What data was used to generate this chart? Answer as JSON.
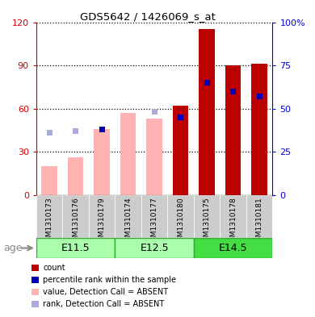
{
  "title": "GDS5642 / 1426069_s_at",
  "samples": [
    "GSM1310173",
    "GSM1310176",
    "GSM1310179",
    "GSM1310174",
    "GSM1310177",
    "GSM1310180",
    "GSM1310175",
    "GSM1310178",
    "GSM1310181"
  ],
  "age_groups": [
    {
      "label": "E11.5",
      "start": 0,
      "end": 3
    },
    {
      "label": "E12.5",
      "start": 3,
      "end": 6
    },
    {
      "label": "E14.5",
      "start": 6,
      "end": 9
    }
  ],
  "value_absent": [
    20,
    26,
    46,
    57,
    53,
    null,
    null,
    null,
    null
  ],
  "rank_absent_pct": [
    36,
    37,
    null,
    null,
    48,
    null,
    null,
    null,
    null
  ],
  "count_red": [
    null,
    null,
    null,
    null,
    null,
    62,
    115,
    90,
    91
  ],
  "rank_blue_pct": [
    null,
    null,
    38,
    null,
    null,
    45,
    65,
    60,
    57
  ],
  "ylim_left": [
    0,
    120
  ],
  "ylim_right": [
    0,
    100
  ],
  "yticks_left": [
    0,
    30,
    60,
    90,
    120
  ],
  "ytick_labels_left": [
    "0",
    "30",
    "60",
    "90",
    "120"
  ],
  "yticks_right_vals": [
    0,
    25,
    50,
    75,
    100
  ],
  "ytick_labels_right": [
    "0",
    "25",
    "50",
    "75",
    "100%"
  ],
  "bar_width": 0.6,
  "color_value_absent": "#FFB3B3",
  "color_rank_absent": "#AAAADD",
  "color_count": "#BB0000",
  "color_rank": "#0000BB",
  "color_age_band_light": "#AAFFAA",
  "color_age_band_dark": "#44DD44",
  "color_age_border": "#33AA33",
  "grid_color": "#000000",
  "bg_color": "#FFFFFF",
  "plot_bg": "#FFFFFF",
  "ylabel_left_color": "#CC0000",
  "ylabel_right_color": "#0000CC",
  "xtick_bg": "#CCCCCC"
}
